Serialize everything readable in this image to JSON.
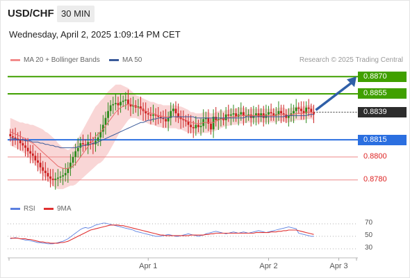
{
  "header": {
    "pair": "USD/CHF",
    "timeframe": "30 MIN",
    "datetime": "Wednesday, April 2, 2025 1:09:14 PM CET"
  },
  "legend": {
    "ma20": "MA 20 + Bollinger Bands",
    "ma50": "MA 50",
    "credit": "Research © 2025 Trading Central"
  },
  "rsi_legend": {
    "rsi": "RSI",
    "ma9": "9MA"
  },
  "colors": {
    "green": "#40a000",
    "blue": "#2b6fe0",
    "red": "#d22",
    "candle_up": "#2a8a1a",
    "candle_down": "#cc2020",
    "bollinger": "#f7c8c8",
    "ma20": "#e86a6a",
    "ma50": "#3a5a9a",
    "arrow": "#2f5fa8",
    "rsi_line": "#5a7fe0",
    "rsi_ma": "#e03030"
  },
  "chart_data": {
    "type": "candlestick",
    "ylim": [
      0.8766,
      0.8878
    ],
    "levels": [
      {
        "name": "resistance2",
        "value": 0.887,
        "label": "0.8870",
        "style": "green"
      },
      {
        "name": "resistance1",
        "value": 0.8855,
        "label": "0.8855",
        "style": "green"
      },
      {
        "name": "current",
        "value": 0.8839,
        "label": "0.8839",
        "style": "dark"
      },
      {
        "name": "pivot",
        "value": 0.8815,
        "label": "0.8815",
        "style": "blue"
      },
      {
        "name": "support1",
        "value": 0.88,
        "label": "0.8800",
        "style": "red"
      },
      {
        "name": "support2",
        "value": 0.878,
        "label": "0.8780",
        "style": "red"
      }
    ],
    "x_ticks": [
      {
        "label": "Apr 1",
        "index": 55
      },
      {
        "label": "Apr 2",
        "index": 103
      },
      {
        "label": "Apr 3",
        "index": 131
      }
    ],
    "n_slots": 138,
    "close": [
      0.8818,
      0.8817,
      0.8816,
      0.8815,
      0.8812,
      0.881,
      0.8808,
      0.8805,
      0.8803,
      0.8801,
      0.8797,
      0.8795,
      0.8791,
      0.8788,
      0.8786,
      0.8783,
      0.8781,
      0.878,
      0.8781,
      0.8782,
      0.8783,
      0.8784,
      0.8786,
      0.879,
      0.8795,
      0.88,
      0.8805,
      0.8808,
      0.8812,
      0.8811,
      0.881,
      0.8813,
      0.8812,
      0.8811,
      0.8814,
      0.8817,
      0.8822,
      0.8828,
      0.8834,
      0.884,
      0.8845,
      0.8846,
      0.8847,
      0.8845,
      0.8848,
      0.8849,
      0.885,
      0.8846,
      0.8844,
      0.8845,
      0.8843,
      0.8844,
      0.8842,
      0.884,
      0.8838,
      0.8837,
      0.8836,
      0.8837,
      0.8836,
      0.8835,
      0.8834,
      0.8833,
      0.8831,
      0.8834,
      0.884,
      0.8842,
      0.8838,
      0.8835,
      0.8833,
      0.8832,
      0.8831,
      0.8828,
      0.8826,
      0.8825,
      0.8828,
      0.8826,
      0.8827,
      0.8833,
      0.8834,
      0.8829,
      0.8824,
      0.8835,
      0.8832,
      0.8833,
      0.8834,
      0.8832,
      0.8837,
      0.8836,
      0.8837,
      0.8838,
      0.8835,
      0.8837,
      0.8839,
      0.8836,
      0.8836,
      0.8837,
      0.8834,
      0.8836,
      0.8838,
      0.8835,
      0.8838,
      0.8834,
      0.8837,
      0.8839,
      0.8838,
      0.8836,
      0.8837,
      0.884,
      0.8838,
      0.8837,
      0.8834,
      0.8836,
      0.8838,
      0.884,
      0.8843,
      0.8842,
      0.884,
      0.8838,
      0.8843,
      0.8842,
      0.8839,
      0.8837
    ],
    "ma20": [
      0.8822,
      0.8821,
      0.882,
      0.8819,
      0.8818,
      0.8817,
      0.8816,
      0.8815,
      0.8813,
      0.8812,
      0.881,
      0.8808,
      0.8806,
      0.8804,
      0.8802,
      0.88,
      0.8798,
      0.8796,
      0.8794,
      0.8792,
      0.8791,
      0.879,
      0.879,
      0.879,
      0.8791,
      0.8792,
      0.8794,
      0.8797,
      0.88,
      0.8803,
      0.8806,
      0.8809,
      0.8812,
      0.8815,
      0.8818,
      0.882,
      0.8822,
      0.8824,
      0.8827,
      0.883,
      0.8833,
      0.8836,
      0.8839,
      0.8841,
      0.8843,
      0.8844,
      0.8845,
      0.8846,
      0.8846,
      0.8845,
      0.8844,
      0.8843,
      0.8842,
      0.8841,
      0.884,
      0.8839,
      0.8838,
      0.8838,
      0.8837,
      0.8836,
      0.8836,
      0.8835,
      0.8835,
      0.8835,
      0.8835,
      0.8835,
      0.8835,
      0.8834,
      0.8834,
      0.8833,
      0.8832,
      0.8831,
      0.883,
      0.883,
      0.8829,
      0.8829,
      0.8829,
      0.883,
      0.883,
      0.883,
      0.883,
      0.883,
      0.8831,
      0.8832,
      0.8833,
      0.8833,
      0.8834,
      0.8834,
      0.8835,
      0.8835,
      0.8835,
      0.8836,
      0.8836,
      0.8836,
      0.8836,
      0.8836,
      0.8836,
      0.8836,
      0.8836,
      0.8836,
      0.8836,
      0.8836,
      0.8836,
      0.8836,
      0.8836,
      0.8836,
      0.8836,
      0.8837,
      0.8837,
      0.8837,
      0.8836,
      0.8836,
      0.8837,
      0.8837,
      0.8838,
      0.8838,
      0.8838,
      0.8838,
      0.8839,
      0.8839,
      0.8839,
      0.8838
    ],
    "ma50": [
      0.8817,
      0.8816,
      0.8816,
      0.8815,
      0.8815,
      0.8815,
      0.8814,
      0.8814,
      0.8814,
      0.8813,
      0.8813,
      0.8813,
      0.8812,
      0.8812,
      0.8811,
      0.8811,
      0.881,
      0.881,
      0.8809,
      0.8809,
      0.8808,
      0.8808,
      0.8808,
      0.8808,
      0.8808,
      0.8808,
      0.8808,
      0.8809,
      0.8809,
      0.881,
      0.881,
      0.8811,
      0.8811,
      0.8812,
      0.8812,
      0.8813,
      0.8814,
      0.8815,
      0.8816,
      0.8817,
      0.8818,
      0.8819,
      0.882,
      0.8821,
      0.8822,
      0.8823,
      0.8824,
      0.8825,
      0.8826,
      0.8827,
      0.8828,
      0.8829,
      0.883,
      0.883,
      0.8831,
      0.8832,
      0.8832,
      0.8833,
      0.8833,
      0.8834,
      0.8834,
      0.8834,
      0.8834,
      0.8834,
      0.8835,
      0.8835,
      0.8835,
      0.8835,
      0.8835,
      0.8835,
      0.8835,
      0.8835,
      0.8835,
      0.8835,
      0.8834,
      0.8834,
      0.8834,
      0.8834,
      0.8834,
      0.8834,
      0.8834,
      0.8834,
      0.8834,
      0.8834,
      0.8834,
      0.8834,
      0.8834,
      0.8834,
      0.8834,
      0.8834,
      0.8834,
      0.8834,
      0.8834,
      0.8834,
      0.8835,
      0.8835,
      0.8835,
      0.8835,
      0.8835,
      0.8835,
      0.8835,
      0.8835,
      0.8835,
      0.8835,
      0.8835,
      0.8835,
      0.8835,
      0.8835,
      0.8835,
      0.8835,
      0.8836,
      0.8836,
      0.8836,
      0.8836,
      0.8836,
      0.8836,
      0.8836,
      0.8836,
      0.8836,
      0.8837,
      0.8837,
      0.8837
    ],
    "bb_width": [
      0.0012,
      0.0012,
      0.0012,
      0.0012,
      0.0012,
      0.0013,
      0.0013,
      0.0014,
      0.0015,
      0.0016,
      0.0017,
      0.0018,
      0.0019,
      0.002,
      0.002,
      0.0021,
      0.0021,
      0.0021,
      0.0021,
      0.002,
      0.0019,
      0.0018,
      0.0017,
      0.0016,
      0.0016,
      0.0017,
      0.0018,
      0.0019,
      0.002,
      0.0021,
      0.0022,
      0.0023,
      0.0024,
      0.0025,
      0.0026,
      0.0026,
      0.0027,
      0.0027,
      0.0027,
      0.0027,
      0.0026,
      0.0025,
      0.0024,
      0.0022,
      0.002,
      0.0018,
      0.0016,
      0.0014,
      0.0012,
      0.0011,
      0.001,
      0.001,
      0.001,
      0.001,
      0.001,
      0.001,
      0.001,
      0.001,
      0.001,
      0.001,
      0.001,
      0.001,
      0.001,
      0.001,
      0.001,
      0.001,
      0.001,
      0.001,
      0.001,
      0.001,
      0.001,
      0.001,
      0.0009,
      0.0009,
      0.0009,
      0.0009,
      0.0009,
      0.0009,
      0.0009,
      0.0009,
      0.0008,
      0.0008,
      0.0008,
      0.0008,
      0.0008,
      0.0007,
      0.0007,
      0.0007,
      0.0007,
      0.0007,
      0.0007,
      0.0007,
      0.0007,
      0.0007,
      0.0006,
      0.0006,
      0.0006,
      0.0006,
      0.0006,
      0.0006,
      0.0006,
      0.0006,
      0.0006,
      0.0006,
      0.0006,
      0.0006,
      0.0006,
      0.0006,
      0.0006,
      0.0006,
      0.0006,
      0.0006,
      0.0006,
      0.0006,
      0.0006,
      0.0006,
      0.0006,
      0.0006,
      0.0006,
      0.0006,
      0.0006,
      0.0006
    ],
    "forecast_arrow": {
      "from": 0.8839,
      "to": 0.887
    },
    "rsi": {
      "ylim": [
        20,
        80
      ],
      "levels": [
        70,
        50,
        30
      ],
      "values": [
        46,
        47,
        48,
        47,
        46,
        45,
        44,
        44,
        43,
        42,
        41,
        40,
        40,
        39,
        39,
        38,
        38,
        38,
        39,
        40,
        41,
        42,
        44,
        46,
        49,
        52,
        55,
        58,
        61,
        63,
        64,
        63,
        64,
        66,
        68,
        69,
        70,
        71,
        71,
        70,
        69,
        68,
        67,
        66,
        65,
        64,
        63,
        62,
        61,
        60,
        58,
        57,
        56,
        55,
        54,
        53,
        52,
        51,
        50,
        50,
        50,
        51,
        52,
        53,
        52,
        51,
        50,
        50,
        51,
        52,
        53,
        54,
        53,
        52,
        51,
        50,
        51,
        52,
        54,
        55,
        56,
        57,
        58,
        57,
        56,
        55,
        54,
        55,
        56,
        57,
        56,
        55,
        56,
        57,
        56,
        55,
        56,
        57,
        58,
        59,
        58,
        57,
        56,
        57,
        58,
        59,
        60,
        61,
        62,
        63,
        64,
        65,
        64,
        63,
        62,
        55,
        54,
        53,
        52,
        51,
        50,
        50
      ],
      "ma9": [
        47,
        47,
        47,
        47,
        46,
        46,
        46,
        45,
        45,
        44,
        43,
        42,
        41,
        41,
        40,
        40,
        39,
        39,
        39,
        39,
        40,
        40,
        41,
        42,
        44,
        46,
        48,
        50,
        52,
        54,
        56,
        58,
        60,
        61,
        62,
        63,
        64,
        65,
        66,
        67,
        68,
        68,
        68,
        68,
        67,
        67,
        66,
        65,
        64,
        63,
        62,
        61,
        60,
        59,
        58,
        57,
        56,
        55,
        54,
        53,
        52,
        52,
        51,
        51,
        51,
        51,
        51,
        51,
        51,
        51,
        51,
        51,
        52,
        52,
        52,
        52,
        52,
        52,
        53,
        53,
        54,
        54,
        55,
        55,
        55,
        55,
        55,
        55,
        55,
        55,
        55,
        55,
        55,
        55,
        55,
        55,
        55,
        55,
        56,
        56,
        56,
        56,
        56,
        56,
        57,
        57,
        57,
        58,
        58,
        59,
        59,
        60,
        60,
        60,
        60,
        59,
        58,
        57,
        56,
        55,
        54,
        53
      ]
    },
    "rsi_tick_labels": [
      "70",
      "50",
      "30"
    ]
  }
}
